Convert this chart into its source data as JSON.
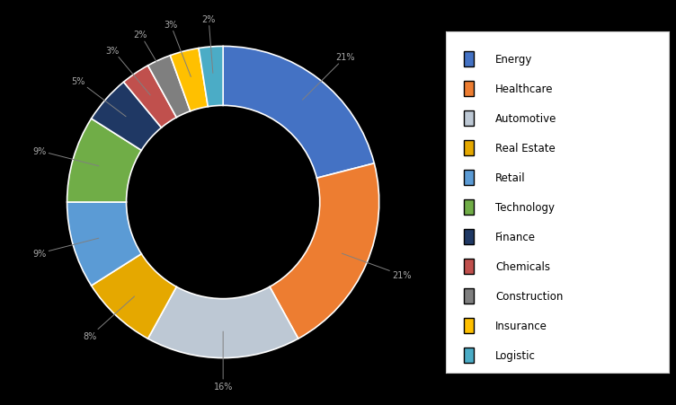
{
  "categories": [
    "Energy",
    "Healthcare",
    "Automotive",
    "Real Estate",
    "Retail",
    "Technology",
    "Finance",
    "Chemicals",
    "Construction",
    "Insurance",
    "Logistic"
  ],
  "values": [
    21.0,
    21.0,
    16.0,
    8.0,
    9.0,
    9.0,
    5.0,
    3.0,
    2.5,
    3.0,
    2.5
  ],
  "colors": [
    "#4472C4",
    "#ED7D31",
    "#BDC8D4",
    "#E5A800",
    "#5B9BD5",
    "#70AD47",
    "#1F3864",
    "#C0504D",
    "#7F7F7F",
    "#FFC000",
    "#4BACC6"
  ],
  "background_color": "#000000",
  "text_color": "#AAAAAA",
  "legend_bg": "#FFFFFF",
  "legend_edge": "#CCCCCC"
}
